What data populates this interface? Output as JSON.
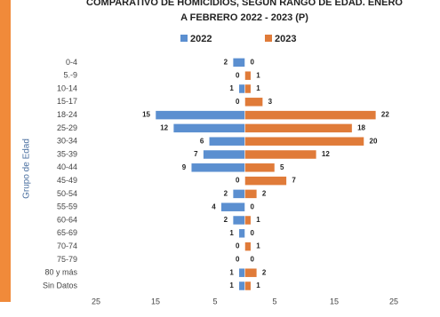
{
  "chart_data": {
    "type": "butterfly",
    "title": "COMPARATIVO DE HOMICIDIOS, SEGÚN RANGO DE EDAD. ENERO",
    "subtitle": "A FEBRERO  2022 - 2023 (P)",
    "y_label": "Grupo de Edad",
    "categories": [
      "0-4",
      "5.-9",
      "10-14",
      "15-17",
      "18-24",
      "25-29",
      "30-34",
      "35-39",
      "40-44",
      "45-49",
      "50-54",
      "55-59",
      "60-64",
      "65-69",
      "70-74",
      "75-79",
      "80 y más",
      "Sin Datos"
    ],
    "series": [
      {
        "name": "2022",
        "color": "#5b8fd0",
        "side": "left",
        "values": [
          2,
          0,
          1,
          0,
          15,
          12,
          6,
          7,
          9,
          0,
          2,
          4,
          2,
          1,
          0,
          0,
          1,
          1
        ]
      },
      {
        "name": "2023",
        "color": "#e07b39",
        "side": "right",
        "values": [
          0,
          1,
          1,
          3,
          22,
          18,
          20,
          12,
          5,
          7,
          2,
          0,
          1,
          0,
          1,
          0,
          2,
          1
        ]
      }
    ],
    "xlim": [
      -25,
      25
    ],
    "xticks": [
      {
        "value": -25,
        "label": "25"
      },
      {
        "value": -15,
        "label": "15"
      },
      {
        "value": -5,
        "label": "5"
      },
      5,
      15,
      25
    ],
    "legend": "top"
  }
}
